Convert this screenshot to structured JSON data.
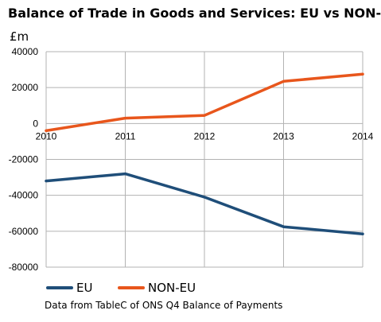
{
  "chart_data": {
    "type": "line",
    "title": "Balance of Trade in Goods and Services:  EU vs NON-EU",
    "ylabel": "£m",
    "xlabel": "",
    "x": [
      "2010",
      "2011",
      "2012",
      "2013",
      "2014"
    ],
    "ylim": [
      -80000,
      40000
    ],
    "y_ticks": [
      40000,
      20000,
      0,
      -20000,
      -40000,
      -60000,
      -80000
    ],
    "y_tick_labels": [
      "40000",
      "20000",
      "0",
      "-20000",
      "-40000",
      "-60000",
      "-80000"
    ],
    "grid": true,
    "legend_position": "bottom-left",
    "series": [
      {
        "name": "EU",
        "color": "#1f4e79",
        "values": [
          -32000,
          -28000,
          -41000,
          -57500,
          -61500
        ]
      },
      {
        "name": "NON-EU",
        "color": "#e8561c",
        "values": [
          -4000,
          3000,
          4500,
          23500,
          27500
        ]
      }
    ],
    "note": "Data from TableC of ONS Q4 Balance of Payments"
  }
}
